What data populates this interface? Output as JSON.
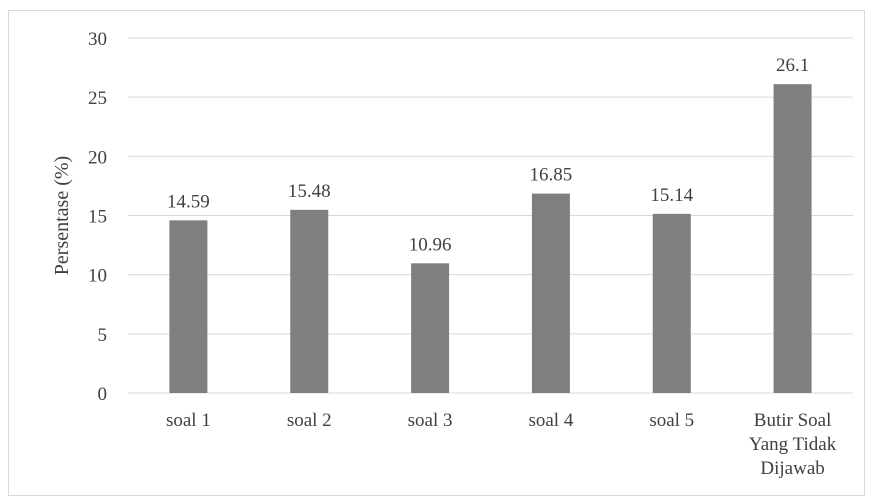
{
  "chart_data": {
    "type": "bar",
    "categories": [
      "soal 1",
      "soal 2",
      "soal 3",
      "soal 4",
      "soal 5",
      "Butir Soal Yang Tidak Dijawab"
    ],
    "category_lines": [
      [
        "soal 1"
      ],
      [
        "soal 2"
      ],
      [
        "soal 3"
      ],
      [
        "soal 4"
      ],
      [
        "soal 5"
      ],
      [
        "Butir Soal",
        "Yang Tidak",
        "Dijawab"
      ]
    ],
    "values": [
      14.59,
      15.48,
      10.96,
      16.85,
      15.14,
      26.1
    ],
    "value_labels": [
      "14.59",
      "15.48",
      "10.96",
      "16.85",
      "15.14",
      "26.1"
    ],
    "ylabel": "Persentase (%)",
    "ylim": [
      0,
      30
    ],
    "yticks": [
      0,
      5,
      10,
      15,
      20,
      25,
      30
    ],
    "grid": true,
    "legend": "none",
    "colors": {
      "bar": "#7f7f7f",
      "grid": "#d9d9d9",
      "text": "#404040",
      "border": "#d9d9d9"
    }
  }
}
